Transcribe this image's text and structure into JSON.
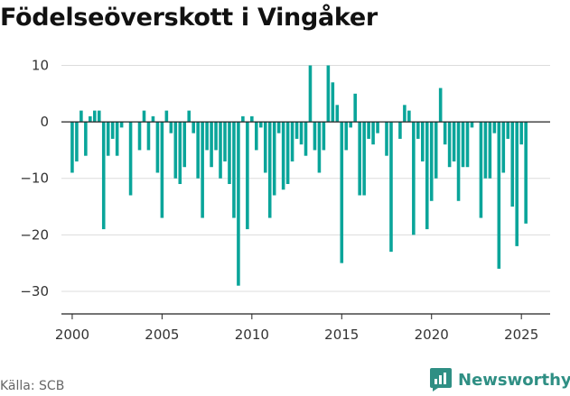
{
  "title": "Födelseöverskott i Vingåker",
  "source": "Källa: SCB",
  "brand": {
    "name": "Newsworthy",
    "color": "#2f8f84"
  },
  "chart_data": {
    "type": "bar",
    "title": "Födelseöverskott i Vingåker",
    "xlabel": "",
    "ylabel": "",
    "bar_color": "#0aa59a",
    "ylim": [
      -34,
      12
    ],
    "xlim": [
      1999.4,
      2026.6
    ],
    "yticks": [
      10,
      0,
      -10,
      -20,
      -30
    ],
    "xticks": [
      2000,
      2005,
      2010,
      2015,
      2020,
      2025
    ],
    "grid": "horizontal",
    "frequency": "quarterly",
    "x": [
      2000.0,
      2000.25,
      2000.5,
      2000.75,
      2001.0,
      2001.25,
      2001.5,
      2001.75,
      2002.0,
      2002.25,
      2002.5,
      2002.75,
      2003.0,
      2003.25,
      2003.5,
      2003.75,
      2004.0,
      2004.25,
      2004.5,
      2004.75,
      2005.0,
      2005.25,
      2005.5,
      2005.75,
      2006.0,
      2006.25,
      2006.5,
      2006.75,
      2007.0,
      2007.25,
      2007.5,
      2007.75,
      2008.0,
      2008.25,
      2008.5,
      2008.75,
      2009.0,
      2009.25,
      2009.5,
      2009.75,
      2010.0,
      2010.25,
      2010.5,
      2010.75,
      2011.0,
      2011.25,
      2011.5,
      2011.75,
      2012.0,
      2012.25,
      2012.5,
      2012.75,
      2013.0,
      2013.25,
      2013.5,
      2013.75,
      2014.0,
      2014.25,
      2014.5,
      2014.75,
      2015.0,
      2015.25,
      2015.5,
      2015.75,
      2016.0,
      2016.25,
      2016.5,
      2016.75,
      2017.0,
      2017.25,
      2017.5,
      2017.75,
      2018.0,
      2018.25,
      2018.5,
      2018.75,
      2019.0,
      2019.25,
      2019.5,
      2019.75,
      2020.0,
      2020.25,
      2020.5,
      2020.75,
      2021.0,
      2021.25,
      2021.5,
      2021.75,
      2022.0,
      2022.25,
      2022.5,
      2022.75,
      2023.0,
      2023.25,
      2023.5,
      2023.75,
      2024.0,
      2024.25,
      2024.5,
      2024.75,
      2025.0,
      2025.25,
      2025.5
    ],
    "values": [
      -9,
      -7,
      2,
      -6,
      1,
      2,
      2,
      -19,
      -6,
      -3,
      -6,
      -1,
      0,
      -13,
      0,
      -5,
      2,
      -5,
      1,
      -9,
      -17,
      2,
      -2,
      -10,
      -11,
      -8,
      2,
      -2,
      -10,
      -17,
      -5,
      -8,
      -5,
      -10,
      -7,
      -11,
      -17,
      -29,
      1,
      -19,
      1,
      -5,
      -1,
      -9,
      -17,
      -13,
      -2,
      -12,
      -11,
      -7,
      -3,
      -4,
      -6,
      10,
      -5,
      -9,
      -5,
      10,
      7,
      3,
      -25,
      -5,
      -1,
      5,
      -13,
      -13,
      -3,
      -4,
      -2,
      0,
      -6,
      -23,
      0,
      -3,
      3,
      2,
      -20,
      -3,
      -7,
      -19,
      -14,
      -10,
      6,
      -4,
      -8,
      -7,
      -14,
      -8,
      -8,
      -1,
      0,
      -17,
      -10,
      -10,
      -2,
      -26,
      -9,
      -3,
      -15,
      -22,
      -4,
      -18,
      null
    ]
  }
}
